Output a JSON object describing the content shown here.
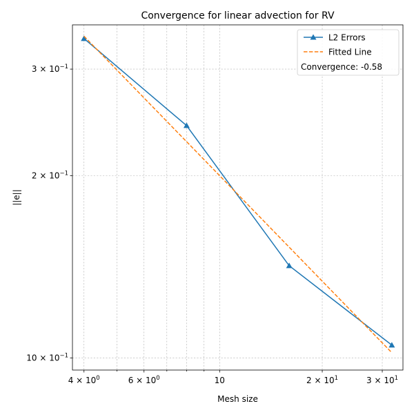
{
  "chart_data": {
    "type": "line",
    "title": "Convergence for linear advection for RV",
    "xlabel": "Mesh size",
    "ylabel": "||e||",
    "xscale": "log",
    "yscale": "log",
    "xlim": [
      3.7,
      34.5
    ],
    "ylim": [
      0.0955,
      0.355
    ],
    "grid": true,
    "legend_position": "top-right",
    "x_major_ticks": [
      {
        "value": 4,
        "base": "4",
        "sup": "0"
      },
      {
        "value": 6,
        "base": "6",
        "sup": "0"
      },
      {
        "value": 10,
        "base": "10",
        "sup": "1"
      },
      {
        "value": 20,
        "base": "2",
        "sup": "1"
      },
      {
        "value": 30,
        "base": "3",
        "sup": "1"
      }
    ],
    "x_minor_grid": [
      5,
      7,
      8,
      9
    ],
    "y_major_ticks": [
      {
        "value": 0.1,
        "base": "10",
        "sup": "−1"
      },
      {
        "value": 0.2,
        "base": "2",
        "sup": "−1"
      },
      {
        "value": 0.3,
        "base": "3",
        "sup": "−1"
      }
    ],
    "series": [
      {
        "name": "L2 Errors",
        "style": "solid",
        "marker": "triangle",
        "color": "#1f77b4",
        "x": [
          4,
          8,
          16,
          32
        ],
        "y": [
          0.337,
          0.242,
          0.142,
          0.105
        ]
      },
      {
        "name": "Fitted Line",
        "style": "dashed",
        "marker": "none",
        "color": "#ff7f0e",
        "x": [
          4,
          32
        ],
        "y": [
          0.34,
          0.102
        ]
      }
    ],
    "annotation": "Convergence: -0.58"
  }
}
